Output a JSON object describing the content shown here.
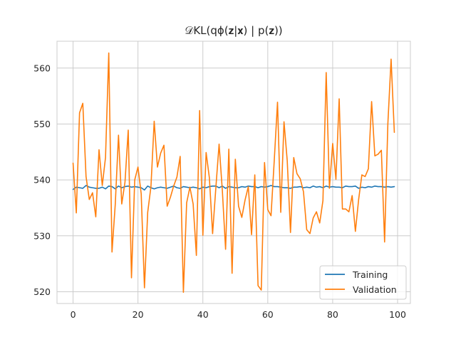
{
  "chart_data": {
    "type": "line",
    "title": "𝒟KL(qϕ(𝐳|𝐱) | p(𝐳))",
    "xlabel": "",
    "ylabel": "",
    "xlim": [
      -4.95,
      103.95
    ],
    "ylim": [
      517.9,
      564.8
    ],
    "xticks": [
      0,
      20,
      40,
      60,
      80,
      100
    ],
    "yticks": [
      520,
      530,
      540,
      550,
      560
    ],
    "grid": true,
    "legend_position": "lower-right",
    "series": [
      {
        "name": "Training",
        "color": "#1f77b4",
        "x": [
          0,
          1,
          2,
          3,
          4,
          5,
          6,
          7,
          8,
          9,
          10,
          11,
          12,
          13,
          14,
          15,
          16,
          17,
          18,
          19,
          20,
          21,
          22,
          23,
          24,
          25,
          26,
          27,
          28,
          29,
          30,
          31,
          32,
          33,
          34,
          35,
          36,
          37,
          38,
          39,
          40,
          41,
          42,
          43,
          44,
          45,
          46,
          47,
          48,
          49,
          50,
          51,
          52,
          53,
          54,
          55,
          56,
          57,
          58,
          59,
          60,
          61,
          62,
          63,
          64,
          65,
          66,
          67,
          68,
          69,
          70,
          71,
          72,
          73,
          74,
          75,
          76,
          77,
          78,
          79,
          80,
          81,
          82,
          83,
          84,
          85,
          86,
          87,
          88,
          89,
          90,
          91,
          92,
          93,
          94,
          95,
          96,
          97,
          98,
          99
        ],
        "values": [
          538.3,
          538.7,
          538.6,
          538.5,
          539.0,
          538.7,
          538.6,
          538.5,
          538.5,
          538.7,
          538.4,
          538.9,
          538.8,
          538.4,
          538.9,
          538.6,
          538.8,
          538.9,
          538.7,
          538.8,
          538.7,
          538.6,
          538.2,
          538.9,
          538.6,
          538.4,
          538.6,
          538.7,
          538.6,
          538.5,
          538.7,
          538.9,
          538.6,
          538.5,
          538.8,
          538.7,
          538.6,
          538.7,
          538.6,
          538.4,
          538.7,
          538.6,
          538.8,
          538.9,
          538.9,
          538.6,
          538.9,
          538.5,
          538.8,
          538.7,
          538.6,
          538.6,
          538.8,
          538.7,
          538.9,
          538.8,
          538.8,
          538.6,
          538.8,
          538.7,
          538.8,
          539.0,
          538.8,
          538.8,
          538.7,
          538.6,
          538.6,
          538.5,
          538.7,
          538.7,
          538.8,
          538.6,
          538.7,
          538.6,
          538.9,
          538.7,
          538.8,
          538.6,
          538.9,
          538.7,
          538.8,
          538.7,
          538.7,
          538.6,
          538.9,
          538.8,
          538.8,
          538.9,
          538.5,
          538.7,
          538.6,
          538.8,
          538.7,
          538.9,
          538.8,
          538.8,
          538.7,
          538.8,
          538.7,
          538.8
        ]
      },
      {
        "name": "Validation",
        "color": "#ff7f0e",
        "x": [
          0,
          1,
          2,
          3,
          4,
          5,
          6,
          7,
          8,
          9,
          10,
          11,
          12,
          13,
          14,
          15,
          16,
          17,
          18,
          19,
          20,
          21,
          22,
          23,
          24,
          25,
          26,
          27,
          28,
          29,
          30,
          31,
          32,
          33,
          34,
          35,
          36,
          37,
          38,
          39,
          40,
          41,
          42,
          43,
          44,
          45,
          46,
          47,
          48,
          49,
          50,
          51,
          52,
          53,
          54,
          55,
          56,
          57,
          58,
          59,
          60,
          61,
          62,
          63,
          64,
          65,
          66,
          67,
          68,
          69,
          70,
          71,
          72,
          73,
          74,
          75,
          76,
          77,
          78,
          79,
          80,
          81,
          82,
          83,
          84,
          85,
          86,
          87,
          88,
          89,
          90,
          91,
          92,
          93,
          94,
          95,
          96,
          97,
          98,
          99
        ],
        "values": [
          543.0,
          534.1,
          552.0,
          553.7,
          540.6,
          536.5,
          537.7,
          533.4,
          545.4,
          539.0,
          544.0,
          562.7,
          527.1,
          535.6,
          548.0,
          535.7,
          539.6,
          548.9,
          522.5,
          540.0,
          542.3,
          537.5,
          520.7,
          534.2,
          538.8,
          550.5,
          542.3,
          544.8,
          546.2,
          535.3,
          536.9,
          538.9,
          540.5,
          544.2,
          519.9,
          535.9,
          538.7,
          535.7,
          526.5,
          552.4,
          530.1,
          544.9,
          540.4,
          530.4,
          538.6,
          546.4,
          538.1,
          527.6,
          545.5,
          523.3,
          543.7,
          535.3,
          533.3,
          536.4,
          538.8,
          530.2,
          540.9,
          521.1,
          520.3,
          543.1,
          534.7,
          533.6,
          543.5,
          553.9,
          534.2,
          550.4,
          543.4,
          530.6,
          544.0,
          541.1,
          540.2,
          537.9,
          531.1,
          530.4,
          533.2,
          534.3,
          532.3,
          536.3,
          559.2,
          538.5,
          546.5,
          540.1,
          554.5,
          534.8,
          534.8,
          534.3,
          537.2,
          530.8,
          536.5,
          540.9,
          540.6,
          542.0,
          554.0,
          544.3,
          544.6,
          545.3,
          528.9,
          550.0,
          561.6,
          548.5
        ]
      }
    ]
  }
}
